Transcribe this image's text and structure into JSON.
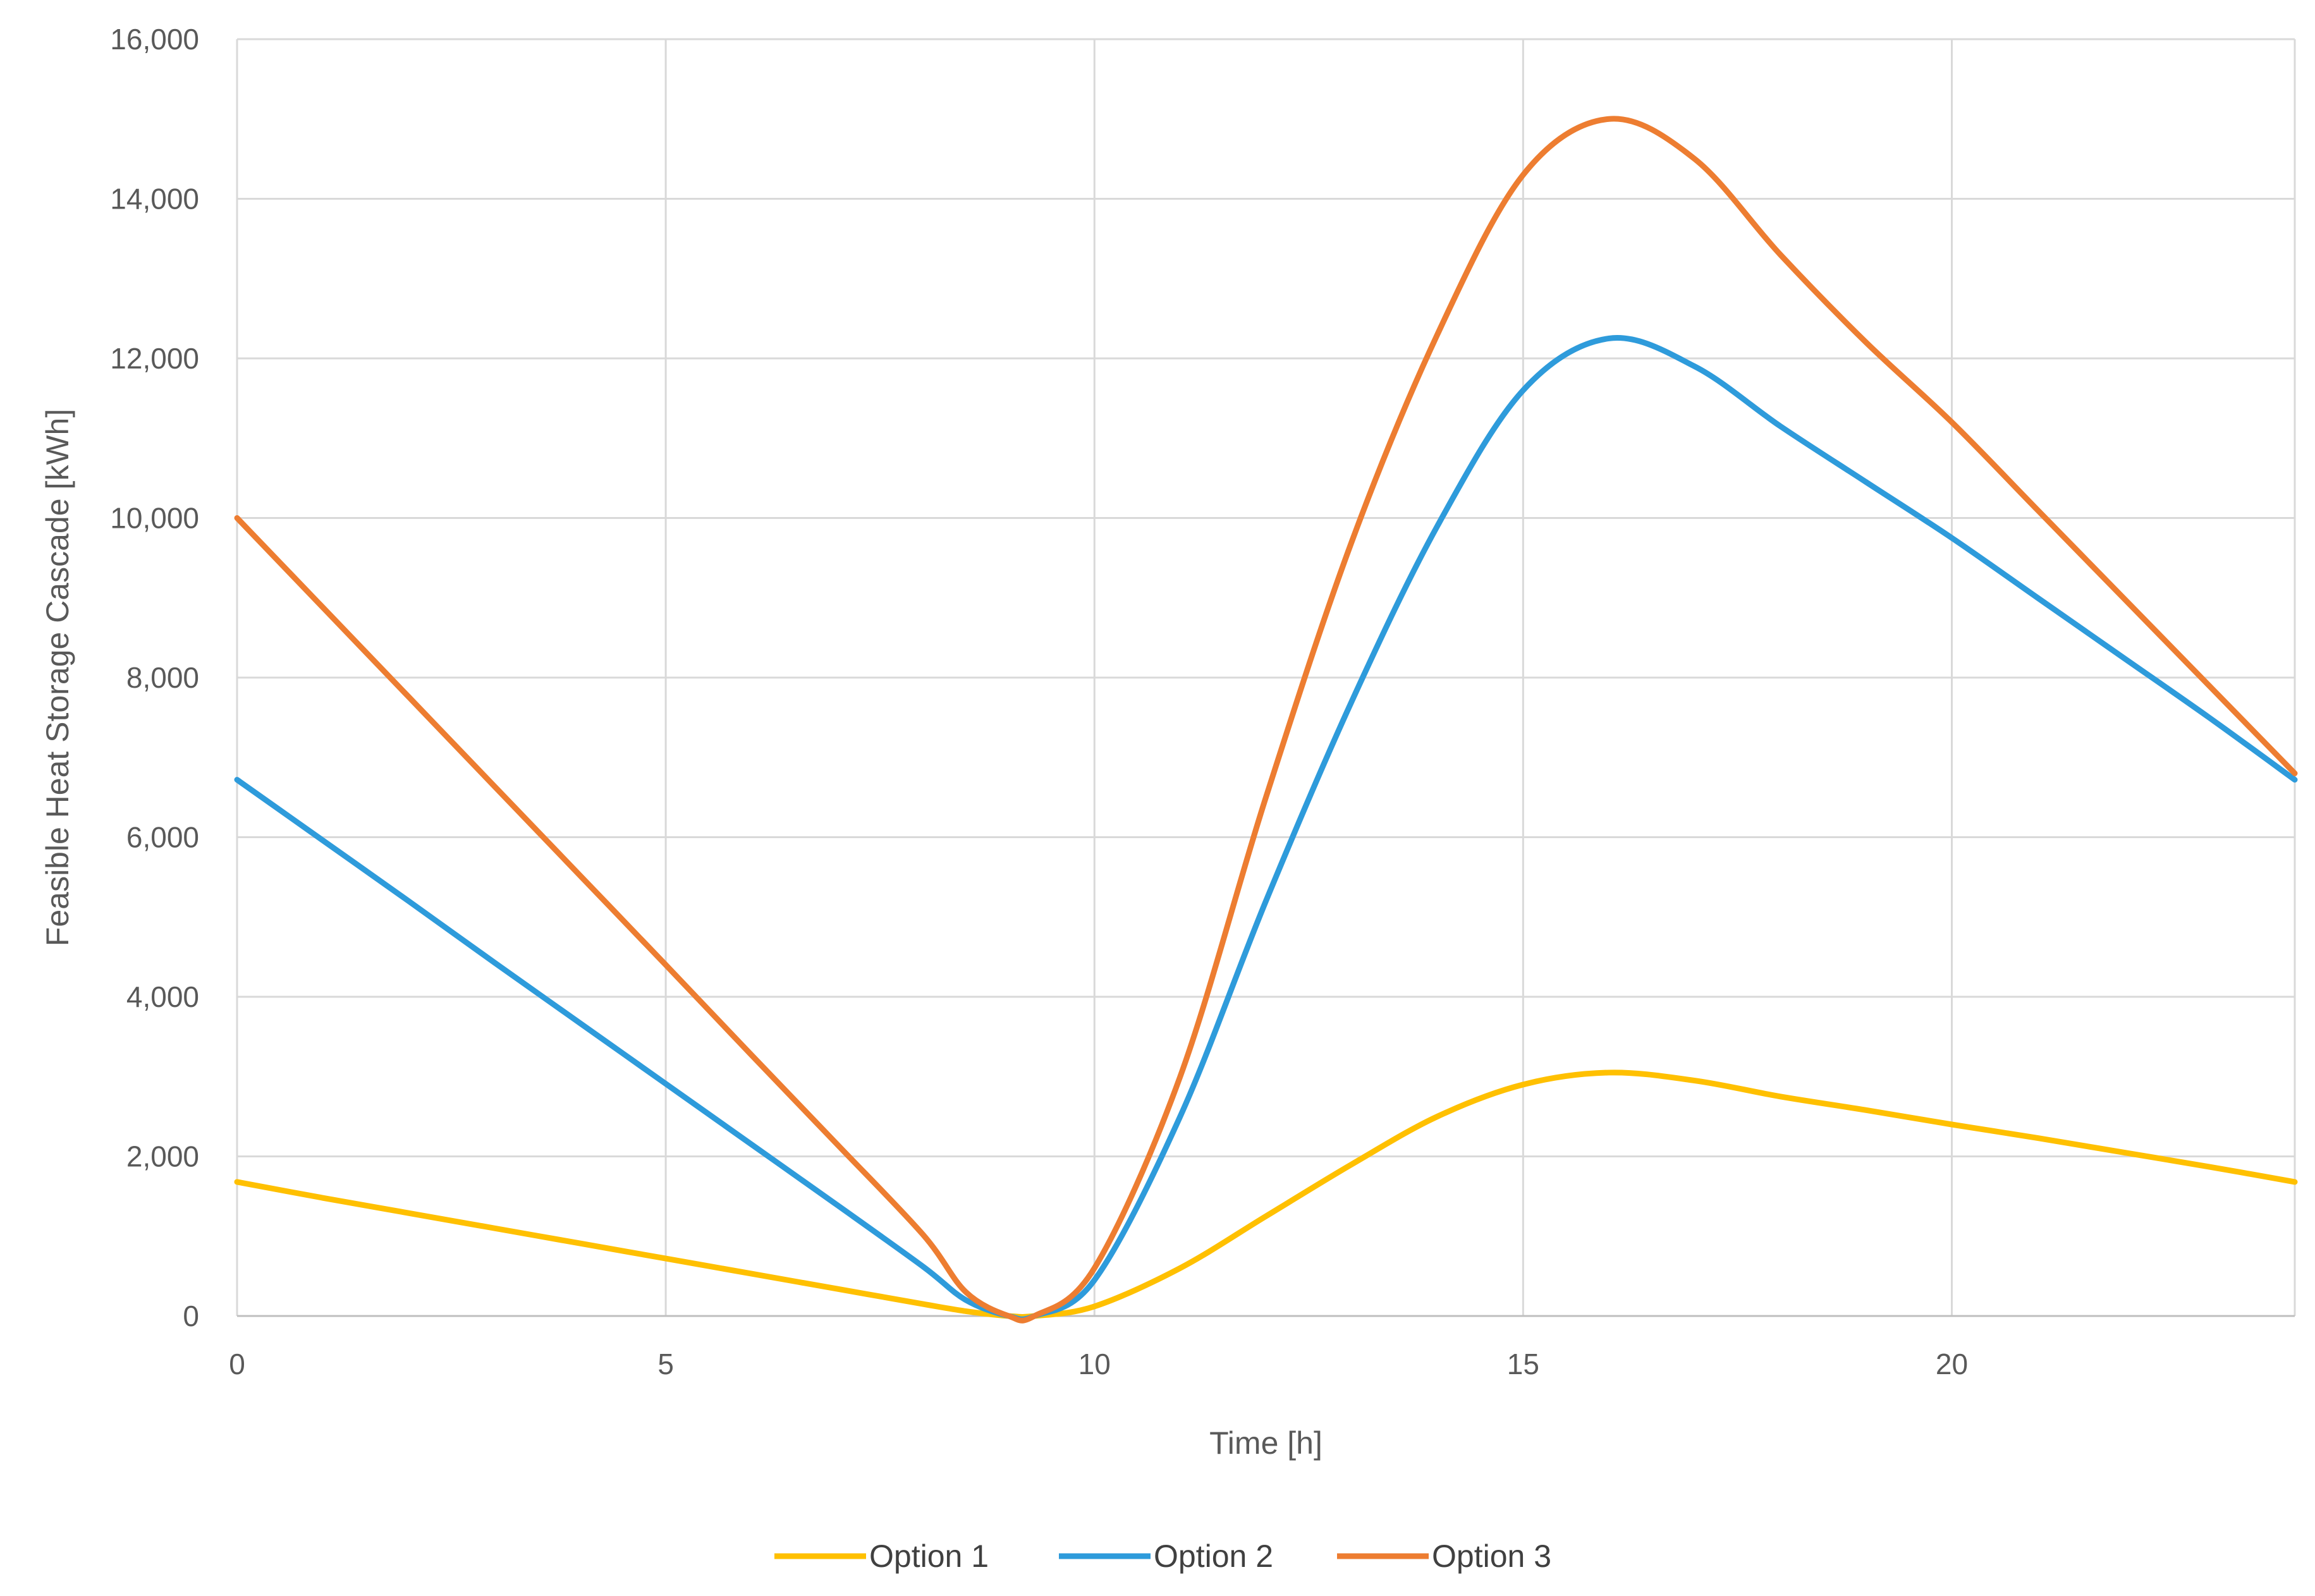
{
  "chart_data": {
    "type": "line",
    "xlabel": "Time [h]",
    "ylabel": "Feasible Heat Storage Cascade [kWh]",
    "xlim": [
      0,
      24
    ],
    "ylim": [
      0,
      16000
    ],
    "xticks": [
      0,
      5,
      10,
      15,
      20
    ],
    "xtick_labels": [
      "0",
      "5",
      "10",
      "15",
      "20"
    ],
    "yticks": [
      0,
      2000,
      4000,
      6000,
      8000,
      10000,
      12000,
      14000,
      16000
    ],
    "ytick_labels": [
      "0",
      "2,000",
      "4,000",
      "6,000",
      "8,000",
      "10,000",
      "12,000",
      "14,000",
      "16,000"
    ],
    "grid": true,
    "legend_position": "bottom",
    "series": [
      {
        "name": "Option 1",
        "color": "#FFC000",
        "x": [
          0,
          1,
          2,
          3,
          4,
          5,
          6,
          7,
          8,
          8.5,
          9,
          9.3,
          10,
          11,
          12,
          13,
          14,
          15,
          16,
          17,
          18,
          19,
          20,
          21,
          22,
          23,
          24
        ],
        "y": [
          1680,
          1480,
          1290,
          1100,
          910,
          720,
          530,
          340,
          150,
          60,
          0,
          0,
          120,
          600,
          1250,
          1900,
          2500,
          2900,
          3050,
          2950,
          2750,
          2580,
          2400,
          2230,
          2050,
          1870,
          1680
        ]
      },
      {
        "name": "Option 2",
        "color": "#2E9BDB",
        "x": [
          0,
          1,
          2,
          3,
          4,
          5,
          6,
          7,
          8,
          8.5,
          9,
          9.3,
          10,
          11,
          12,
          13,
          14,
          15,
          16,
          17,
          18,
          19,
          20,
          21,
          22,
          23,
          24
        ],
        "y": [
          6720,
          5960,
          5200,
          4430,
          3670,
          2910,
          2150,
          1390,
          620,
          200,
          0,
          0,
          450,
          2500,
          5200,
          7700,
          9900,
          11600,
          12250,
          11900,
          11150,
          10450,
          9750,
          9000,
          8250,
          7500,
          6720
        ]
      },
      {
        "name": "Option 3",
        "color": "#ED7D31",
        "x": [
          0,
          1,
          2,
          3,
          4,
          5,
          6,
          7,
          8,
          8.5,
          9,
          9.3,
          10,
          11,
          12,
          13,
          14,
          15,
          16,
          17,
          18,
          19,
          20,
          21,
          22,
          23,
          24
        ],
        "y": [
          10000,
          8880,
          7760,
          6640,
          5520,
          4400,
          3270,
          2150,
          1020,
          300,
          0,
          0,
          600,
          3000,
          6500,
          9700,
          12300,
          14300,
          15000,
          14500,
          13300,
          12200,
          11200,
          10100,
          9000,
          7900,
          6800
        ]
      }
    ]
  }
}
